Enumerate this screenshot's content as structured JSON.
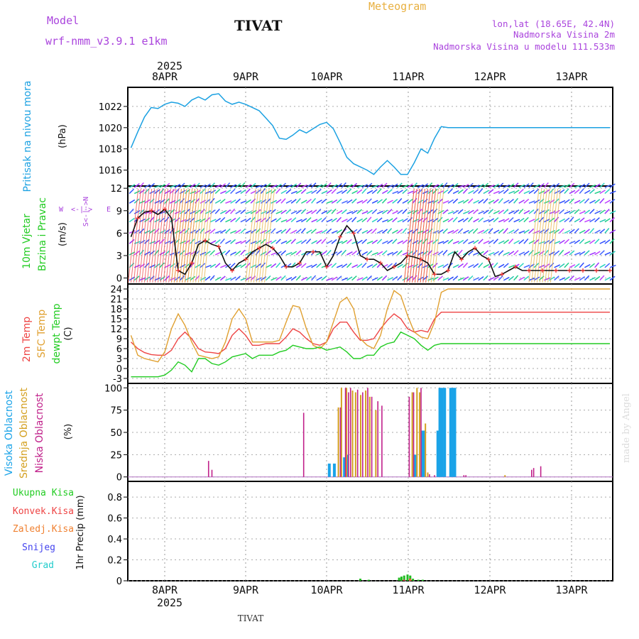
{
  "header": {
    "model_label": "Model",
    "model_name": "wrf-nmm_v3.9.1 e1km",
    "title": "TIVAT",
    "meteogram": "Meteogram",
    "lonlat": "lon,lat (18.65E, 42.4N)",
    "elev": "Nadmorska Visina 2m",
    "elev_model": "Nadmorska Visina u modelu 111.533m"
  },
  "footer": {
    "station": "TIVAT",
    "watermark": "made by Angel"
  },
  "colors": {
    "pressure": "#1ba1e2",
    "temp2m": "#ee4444",
    "sfc": "#e0a030",
    "dewpt": "#22cc22",
    "high_cloud": "#1aa3e8",
    "mid_cloud": "#d4a020",
    "low_cloud": "#c0208a",
    "purple_text": "#aa44dd",
    "orange_text": "#e8b040"
  },
  "time_axis": {
    "year": "2025",
    "days": [
      "8APR",
      "9APR",
      "10APR",
      "11APR",
      "12APR",
      "13APR"
    ],
    "start_hour": "7APR 12:00",
    "hours_span": 144
  },
  "panels": {
    "pressure": {
      "labels": [
        "Pritisak na nivou mora",
        "(hPa)"
      ],
      "ticks": [
        1016,
        1018,
        1020,
        1022
      ],
      "ylim": [
        1014.5,
        1023.8
      ]
    },
    "wind": {
      "labels": [
        "10m Vjetar",
        "Brzina i Pravac",
        "(m/s)"
      ],
      "ticks": [
        0,
        3,
        6,
        9,
        12
      ],
      "ylim": [
        -0.8,
        12.3
      ],
      "compass": {
        "n": "N",
        "w": "W",
        "e": "E",
        "s": "S",
        "wlabel": "W",
        "elabel": "E",
        "arrows": "<-|->"
      }
    },
    "temp": {
      "labels": [
        "2m Temp",
        "SFC Temp",
        "dewpt Temp",
        "(C)"
      ],
      "ticks": [
        -3,
        0,
        3,
        6,
        9,
        12,
        15,
        18,
        21,
        24
      ],
      "ylim": [
        -4.5,
        25.5
      ]
    },
    "cloud": {
      "labels": [
        "Visoka Oblacnost",
        "Srednja Oblacnost",
        "Niska Oblacnost",
        "(%)"
      ],
      "ticks": [
        0,
        25,
        50,
        75,
        100
      ],
      "ylim": [
        -5,
        105
      ]
    },
    "precip": {
      "labels": [
        "Ukupna Kisa",
        "Konvek.Kisa",
        "Zaledj.Kisa",
        "Snijeg",
        "Grad",
        "1hr Precip (mm)"
      ],
      "ticks": [
        0,
        0.2,
        0.4,
        0.6,
        0.8
      ],
      "ylim": [
        0,
        0.95
      ]
    }
  },
  "chart_data": [
    {
      "type": "line",
      "name": "Pritisak na nivou mora",
      "x_unit": "hours since 7APR 12:00",
      "x": [
        0,
        2,
        4,
        6,
        8,
        10,
        12,
        14,
        16,
        18,
        20,
        22,
        24,
        26,
        28,
        30,
        32,
        34,
        36,
        38,
        40,
        42,
        44,
        46,
        48,
        50,
        52,
        54,
        56,
        58,
        60,
        62,
        64,
        66,
        68,
        70,
        72,
        74,
        76,
        78,
        80,
        82,
        84,
        86,
        88,
        90,
        92,
        94,
        96,
        98,
        100,
        102,
        104,
        106,
        108,
        110,
        112,
        114,
        116,
        118,
        120,
        122,
        124,
        126,
        128,
        130,
        132,
        134,
        136,
        138,
        140,
        142,
        144
      ],
      "series": [
        {
          "name": "Pritisak",
          "values": [
            1017.2,
            1018.1,
            1019.6,
            1021.0,
            1021.9,
            1021.8,
            1022.2,
            1022.4,
            1022.3,
            1022.0,
            1022.6,
            1022.9,
            1022.6,
            1023.1,
            1023.2,
            1022.5,
            1022.2,
            1022.4,
            1022.2,
            1021.9,
            1021.6,
            1020.9,
            1020.2,
            1019.0,
            1018.9,
            1019.3,
            1019.8,
            1019.5,
            1019.9,
            1020.3,
            1020.5,
            1019.9,
            1018.6,
            1017.2,
            1016.6,
            1016.3,
            1016.0,
            1015.6,
            1016.3,
            1016.9,
            1016.3,
            1015.6,
            1015.6,
            1016.7,
            1018.0,
            1017.6,
            1019.0,
            1020.1,
            1020.0,
            1020.0,
            1020.0,
            1020.0,
            1020.0,
            1020.0,
            1020.0,
            1020.0,
            1020.0,
            1020.0,
            1020.0,
            1020.0,
            1020.0,
            1020.0,
            1020.0,
            1020.0,
            1020.0,
            1020.0,
            1020.0,
            1020.0,
            1020.0,
            1020.0,
            1020.0,
            1020.0,
            1020.0
          ]
        }
      ]
    },
    {
      "type": "line",
      "name": "10m Vjetar Brzina",
      "x_unit": "hours since 7APR 12:00",
      "x": [
        0,
        2,
        4,
        6,
        8,
        10,
        12,
        14,
        16,
        18,
        20,
        22,
        24,
        26,
        28,
        30,
        32,
        34,
        36,
        38,
        40,
        42,
        44,
        46,
        48,
        50,
        52,
        54,
        56,
        58,
        60,
        62,
        64,
        66,
        68,
        70,
        72,
        74,
        76,
        78,
        80,
        82,
        84,
        86,
        88,
        90,
        92,
        94,
        96,
        98,
        100,
        102,
        104,
        106,
        108,
        110,
        112,
        114,
        116,
        118,
        120,
        122,
        124,
        126,
        128,
        130,
        132,
        134,
        136,
        138,
        140,
        142,
        144
      ],
      "series": [
        {
          "name": "Brzina",
          "values": [
            3.5,
            5.5,
            8.0,
            8.8,
            9.0,
            8.5,
            9.2,
            8.0,
            1.0,
            0.5,
            2.0,
            4.5,
            5.0,
            4.5,
            4.2,
            2.0,
            1.0,
            2.0,
            2.5,
            3.5,
            4.0,
            4.5,
            4.0,
            3.0,
            1.5,
            1.5,
            2.0,
            3.5,
            3.5,
            3.5,
            1.5,
            3.0,
            5.5,
            7.0,
            6.0,
            3.0,
            2.5,
            2.5,
            2.0,
            1.0,
            1.5,
            2.0,
            3.0,
            2.8,
            2.5,
            2.0,
            0.5,
            0.5,
            1.0,
            3.5,
            2.5,
            3.5,
            4.0,
            3.0,
            2.5,
            0.2,
            0.5,
            1.0,
            1.5,
            1.0,
            1.0,
            1.0,
            1.0,
            1.0,
            1.0,
            1.0,
            1.0,
            1.0,
            1.0,
            1.0,
            1.0,
            1.0,
            1.0
          ]
        }
      ]
    },
    {
      "type": "line",
      "name": "Temperature",
      "x_unit": "hours since 7APR 12:00",
      "x": [
        0,
        2,
        4,
        6,
        8,
        10,
        12,
        14,
        16,
        18,
        20,
        22,
        24,
        26,
        28,
        30,
        32,
        34,
        36,
        38,
        40,
        42,
        44,
        46,
        48,
        50,
        52,
        54,
        56,
        58,
        60,
        62,
        64,
        66,
        68,
        70,
        72,
        74,
        76,
        78,
        80,
        82,
        84,
        86,
        88,
        90,
        92,
        94,
        96,
        98,
        100,
        102,
        104,
        106,
        108,
        110,
        112,
        114,
        116,
        118,
        120,
        122,
        124,
        126,
        128,
        130,
        132,
        134,
        136,
        138,
        140,
        142,
        144
      ],
      "series": [
        {
          "name": "2m Temp",
          "values": [
            9.5,
            8.0,
            6.0,
            4.8,
            4.2,
            4.0,
            4.0,
            5.5,
            9.0,
            11.0,
            9.0,
            6.0,
            5.0,
            4.8,
            4.5,
            6.0,
            10.0,
            12.0,
            10.0,
            7.0,
            7.0,
            7.5,
            7.5,
            7.5,
            9.5,
            12.0,
            11.0,
            9.0,
            7.5,
            7.0,
            8.0,
            12.0,
            14.0,
            14.0,
            11.0,
            8.5,
            8.5,
            9.0,
            12.0,
            14.5,
            16.5,
            15.0,
            12.0,
            11.0,
            11.5,
            11.0,
            15.0,
            17.0,
            17.0,
            17.0,
            17.0,
            17.0,
            17.0,
            17.0,
            17.0,
            17.0,
            17.0,
            17.0,
            17.0,
            17.0,
            17.0,
            17.0,
            17.0,
            17.0,
            17.0,
            17.0,
            17.0,
            17.0,
            17.0,
            17.0,
            17.0,
            17.0,
            17.0
          ]
        },
        {
          "name": "SFC Temp",
          "values": [
            13.5,
            10.0,
            4.0,
            3.0,
            2.5,
            2.0,
            5.0,
            12.0,
            16.5,
            13.0,
            8.0,
            4.0,
            3.5,
            3.0,
            3.5,
            8.0,
            15.0,
            18.0,
            15.0,
            8.0,
            8.0,
            8.0,
            8.0,
            8.5,
            14.0,
            19.0,
            18.5,
            12.0,
            7.0,
            6.0,
            8.0,
            14.0,
            20.0,
            21.5,
            18.0,
            9.0,
            7.0,
            6.0,
            10.0,
            18.0,
            23.5,
            22.0,
            16.0,
            11.0,
            9.5,
            9.0,
            14.0,
            23.0,
            24.0,
            24.0,
            24.0,
            24.0,
            24.0,
            24.0,
            24.0,
            24.0,
            24.0,
            24.0,
            24.0,
            24.0,
            24.0,
            24.0,
            24.0,
            24.0,
            24.0,
            24.0,
            24.0,
            24.0,
            24.0,
            24.0,
            24.0,
            24.0,
            24.0
          ]
        },
        {
          "name": "dewpt Temp",
          "values": [
            -1.0,
            -2.5,
            -2.5,
            -2.5,
            -2.5,
            -2.5,
            -2.0,
            -0.5,
            2.0,
            1.0,
            -1.0,
            3.0,
            3.0,
            1.5,
            1.0,
            2.0,
            3.5,
            4.0,
            4.5,
            3.0,
            4.0,
            4.0,
            4.0,
            5.0,
            5.5,
            7.0,
            6.5,
            6.0,
            6.0,
            6.5,
            5.5,
            6.0,
            6.5,
            5.0,
            3.0,
            3.0,
            4.0,
            4.0,
            6.5,
            7.5,
            8.0,
            11.0,
            10.0,
            9.0,
            7.0,
            5.5,
            7.0,
            7.5,
            7.5,
            7.5,
            7.5,
            7.5,
            7.5,
            7.5,
            7.5,
            7.5,
            7.5,
            7.5,
            7.5,
            7.5,
            7.5,
            7.5,
            7.5,
            7.5,
            7.5,
            7.5,
            7.5,
            7.5,
            7.5,
            7.5,
            7.5,
            7.5,
            7.5
          ]
        }
      ]
    },
    {
      "type": "bar",
      "name": "Oblacnost (%)",
      "x_unit": "hours since 7APR 12:00",
      "series": [
        {
          "name": "Visoka Oblacnost",
          "points": [
            [
              60.8,
              15
            ],
            [
              62.3,
              15
            ],
            [
              65.3,
              22
            ],
            [
              66.2,
              25
            ],
            [
              86.2,
              25
            ],
            [
              93,
              52
            ],
            [
              93.6,
              100
            ],
            [
              94.2,
              100
            ],
            [
              95,
              100
            ],
            [
              96.8,
              100
            ],
            [
              97.4,
              100
            ],
            [
              98,
              100
            ],
            [
              88.3,
              52
            ],
            [
              89,
              52
            ]
          ]
        },
        {
          "name": "Srednja Oblacnost",
          "points": [
            [
              63.5,
              78
            ],
            [
              64.4,
              100
            ],
            [
              65.9,
              100
            ],
            [
              67.7,
              97
            ],
            [
              68.6,
              95
            ],
            [
              70.1,
              92
            ],
            [
              71.6,
              97
            ],
            [
              72.8,
              90
            ],
            [
              74.6,
              75
            ],
            [
              85.4,
              95
            ],
            [
              86.8,
              100
            ],
            [
              87.6,
              95
            ],
            [
              89.3,
              60
            ],
            [
              90,
              5
            ],
            [
              112.9,
              2
            ]
          ]
        },
        {
          "name": "Niska Oblacnost",
          "points": [
            [
              25,
              18
            ],
            [
              26,
              8
            ],
            [
              53.2,
              72
            ],
            [
              64.1,
              78
            ],
            [
              65.6,
              100
            ],
            [
              66.5,
              95
            ],
            [
              67.1,
              100
            ],
            [
              69.2,
              98
            ],
            [
              70.7,
              95
            ],
            [
              72.2,
              100
            ],
            [
              73.4,
              90
            ],
            [
              75.2,
              85
            ],
            [
              76.4,
              80
            ],
            [
              84.5,
              90
            ],
            [
              85.8,
              95
            ],
            [
              88,
              100
            ],
            [
              90.5,
              3
            ],
            [
              92,
              2
            ],
            [
              100.7,
              2
            ],
            [
              101.3,
              2
            ],
            [
              120.8,
              8
            ],
            [
              121.4,
              10
            ],
            [
              123.5,
              12
            ]
          ]
        }
      ]
    },
    {
      "type": "bar",
      "name": "1hr Precip (mm)",
      "x_unit": "hours since 7APR 12:00",
      "series": [
        {
          "name": "Ukupna Kisa",
          "points": [
            [
              70,
              0.02
            ],
            [
              72.5,
              0.01
            ],
            [
              81.5,
              0.03
            ],
            [
              82.2,
              0.04
            ],
            [
              83,
              0.05
            ],
            [
              84,
              0.06
            ],
            [
              84.8,
              0.05
            ],
            [
              85.6,
              0.02
            ],
            [
              87.2,
              0.01
            ],
            [
              88.5,
              0.01
            ]
          ]
        },
        {
          "name": "Konvek.Kisa",
          "points": [
            [
              82.6,
              0.01
            ],
            [
              84.4,
              0.02
            ]
          ]
        },
        {
          "name": "Zaledj.Kisa",
          "points": [
            [
              84.2,
              0.01
            ]
          ]
        }
      ]
    }
  ]
}
